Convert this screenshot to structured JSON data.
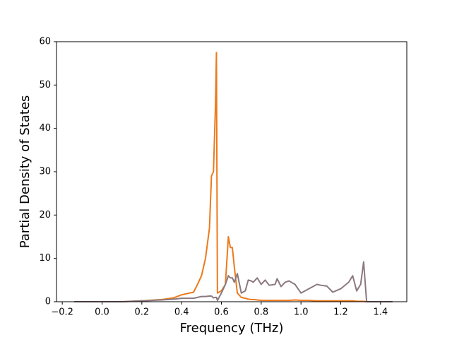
{
  "chart_data": {
    "type": "line",
    "x_label": "Frequency (THz)",
    "y_label": "Partial Density of States",
    "x": [
      -0.14,
      0,
      0.1,
      0.2,
      0.3,
      0.36,
      0.4,
      0.46,
      0.48,
      0.5,
      0.52,
      0.54,
      0.55,
      0.56,
      0.57,
      0.575,
      0.58,
      0.6,
      0.62,
      0.635,
      0.645,
      0.655,
      0.665,
      0.68,
      0.7,
      0.72,
      0.735,
      0.75,
      0.76,
      0.78,
      0.8,
      0.82,
      0.84,
      0.87,
      0.88,
      0.9,
      0.92,
      0.94,
      0.97,
      1.0,
      1.04,
      1.08,
      1.1,
      1.13,
      1.16,
      1.2,
      1.24,
      1.26,
      1.28,
      1.3,
      1.315,
      1.33,
      1.46
    ],
    "series": [
      {
        "color": "#ec7a1c",
        "values": [
          0,
          0,
          0,
          0.2,
          0.5,
          0.9,
          1.6,
          2.2,
          4,
          6,
          10,
          17,
          29,
          30,
          45,
          57.5,
          2,
          2.5,
          4,
          15,
          12.5,
          12.5,
          8,
          2,
          1,
          0.8,
          0.6,
          0.5,
          0.5,
          0.4,
          0.3,
          0.3,
          0.3,
          0.3,
          0.3,
          0.3,
          0.3,
          0.3,
          0.4,
          0.3,
          0.3,
          0.2,
          0.2,
          0.2,
          0.2,
          0.2,
          0.2,
          0.2,
          0.1,
          0.1,
          0.1,
          0,
          0
        ]
      },
      {
        "color": "#8a797e",
        "values": [
          0,
          0,
          0,
          0.2,
          0.4,
          0.6,
          0.8,
          0.8,
          1.0,
          1.2,
          1.2,
          1.3,
          1.3,
          0.9,
          1.0,
          1.0,
          0.3,
          2,
          4,
          6,
          5.5,
          5.5,
          4.5,
          6.5,
          2,
          2.5,
          5,
          4.8,
          4.5,
          5.5,
          4,
          5,
          3.8,
          4,
          5.3,
          3.5,
          4.5,
          4.8,
          4,
          2,
          3,
          4,
          3.8,
          3.6,
          2.2,
          3,
          4.5,
          6,
          2.5,
          4,
          9.2,
          0,
          0
        ]
      }
    ],
    "xlim": [
      -0.229,
      1.532
    ],
    "ylim": [
      0,
      60
    ],
    "xticks": [
      {
        "value": -0.2,
        "label": "−0.2"
      },
      {
        "value": 0,
        "label": "0.0"
      },
      0.2,
      0.4,
      0.6,
      0.8,
      {
        "value": 1,
        "label": "1.0"
      },
      1.2,
      1.4
    ],
    "yticks": [
      0,
      10,
      20,
      30,
      40,
      50,
      60
    ]
  }
}
